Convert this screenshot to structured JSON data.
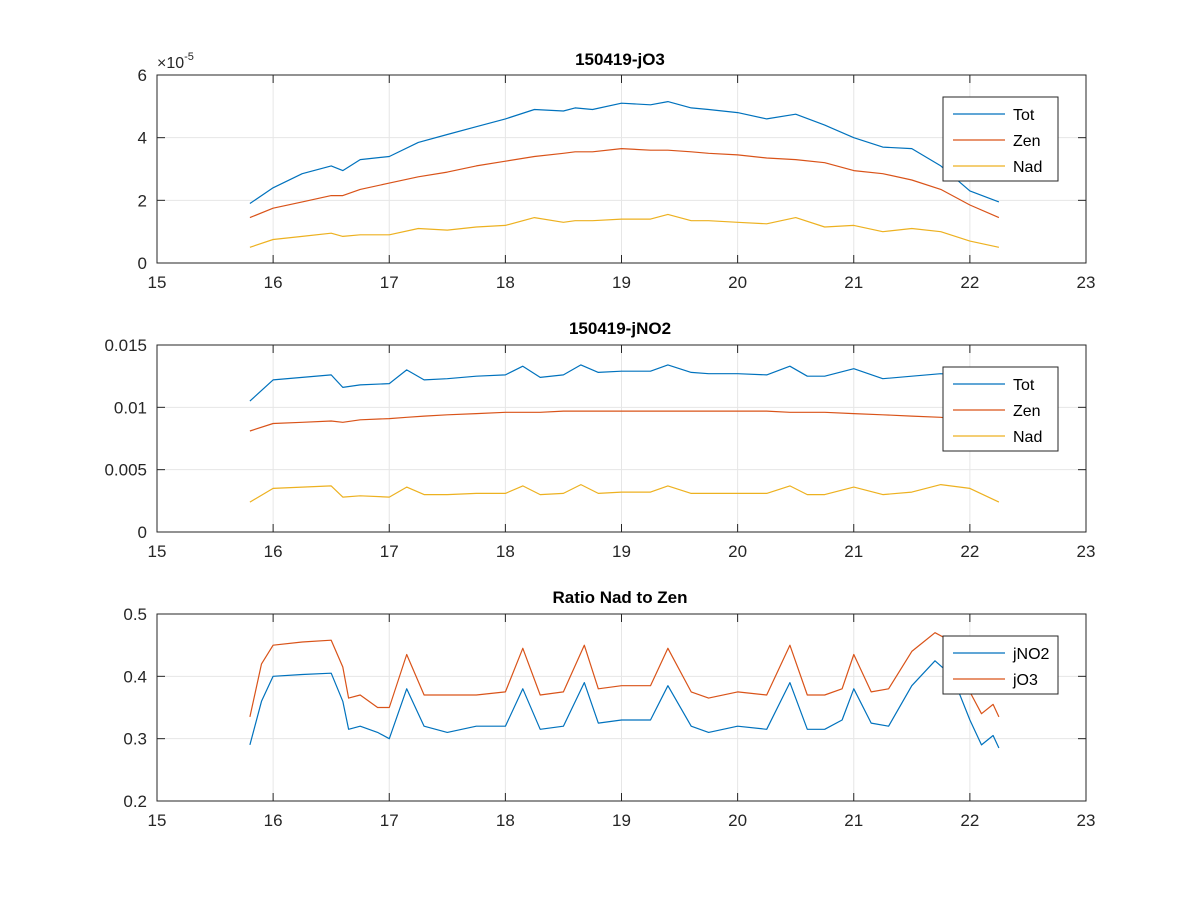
{
  "figure": {
    "background": "#ffffff"
  },
  "chart_data": [
    {
      "type": "line",
      "title": "150419-jO3",
      "xlabel": "",
      "ylabel": "",
      "xlim": [
        15,
        23
      ],
      "ylim": [
        0,
        6
      ],
      "xticks": [
        15,
        16,
        17,
        18,
        19,
        20,
        21,
        22,
        23
      ],
      "yticks": [
        0,
        2,
        4,
        6
      ],
      "ytick_labels": [
        "0",
        "2",
        "4",
        "6"
      ],
      "y_exponent": "-5",
      "y_exponent_prefix": "×10",
      "grid": true,
      "legend_position": "top-right",
      "x": [
        15.8,
        16.0,
        16.25,
        16.5,
        16.6,
        16.75,
        17.0,
        17.25,
        17.5,
        17.75,
        18.0,
        18.25,
        18.5,
        18.6,
        18.75,
        19.0,
        19.25,
        19.4,
        19.6,
        19.75,
        20.0,
        20.25,
        20.5,
        20.75,
        21.0,
        21.25,
        21.5,
        21.75,
        22.0,
        22.25
      ],
      "series": [
        {
          "name": "Tot",
          "color": "#0072BD",
          "values": [
            1.9,
            2.4,
            2.85,
            3.1,
            2.95,
            3.3,
            3.4,
            3.85,
            4.1,
            4.35,
            4.6,
            4.9,
            4.85,
            4.95,
            4.9,
            5.1,
            5.05,
            5.15,
            4.95,
            4.9,
            4.8,
            4.6,
            4.75,
            4.4,
            4.0,
            3.7,
            3.65,
            3.1,
            2.3,
            1.95
          ]
        },
        {
          "name": "Zen",
          "color": "#D95319",
          "values": [
            1.45,
            1.75,
            1.95,
            2.15,
            2.15,
            2.35,
            2.55,
            2.75,
            2.9,
            3.1,
            3.25,
            3.4,
            3.5,
            3.55,
            3.55,
            3.65,
            3.6,
            3.6,
            3.55,
            3.5,
            3.45,
            3.35,
            3.3,
            3.2,
            2.95,
            2.85,
            2.65,
            2.35,
            1.85,
            1.45
          ]
        },
        {
          "name": "Nad",
          "color": "#EDB120",
          "values": [
            0.5,
            0.75,
            0.85,
            0.95,
            0.85,
            0.9,
            0.9,
            1.1,
            1.05,
            1.15,
            1.2,
            1.45,
            1.3,
            1.35,
            1.35,
            1.4,
            1.4,
            1.55,
            1.35,
            1.35,
            1.3,
            1.25,
            1.45,
            1.15,
            1.2,
            1.0,
            1.1,
            1.0,
            0.7,
            0.5
          ]
        }
      ]
    },
    {
      "type": "line",
      "title": "150419-jNO2",
      "xlabel": "",
      "ylabel": "",
      "xlim": [
        15,
        23
      ],
      "ylim": [
        0,
        0.015
      ],
      "xticks": [
        15,
        16,
        17,
        18,
        19,
        20,
        21,
        22,
        23
      ],
      "yticks": [
        0,
        0.005,
        0.01,
        0.015
      ],
      "ytick_labels": [
        "0",
        "0.005",
        "0.01",
        "0.015"
      ],
      "grid": true,
      "legend_position": "top-right",
      "x": [
        15.8,
        16.0,
        16.25,
        16.5,
        16.6,
        16.75,
        17.0,
        17.15,
        17.3,
        17.5,
        17.75,
        18.0,
        18.15,
        18.3,
        18.5,
        18.65,
        18.8,
        19.0,
        19.25,
        19.4,
        19.6,
        19.75,
        20.0,
        20.25,
        20.45,
        20.6,
        20.75,
        21.0,
        21.25,
        21.5,
        21.75,
        22.0,
        22.25
      ],
      "series": [
        {
          "name": "Tot",
          "color": "#0072BD",
          "values": [
            0.0105,
            0.0122,
            0.0124,
            0.0126,
            0.0116,
            0.0118,
            0.0119,
            0.013,
            0.0122,
            0.0123,
            0.0125,
            0.0126,
            0.0133,
            0.0124,
            0.0126,
            0.0134,
            0.0128,
            0.0129,
            0.0129,
            0.0134,
            0.0128,
            0.0127,
            0.0127,
            0.0126,
            0.0133,
            0.0125,
            0.0125,
            0.0131,
            0.0123,
            0.0125,
            0.0127,
            0.0125,
            0.0124
          ]
        },
        {
          "name": "Zen",
          "color": "#D95319",
          "values": [
            0.0081,
            0.0087,
            0.0088,
            0.0089,
            0.0088,
            0.009,
            0.0091,
            0.0092,
            0.0093,
            0.0094,
            0.0095,
            0.0096,
            0.0096,
            0.0096,
            0.0097,
            0.0097,
            0.0097,
            0.0097,
            0.0097,
            0.0097,
            0.0097,
            0.0097,
            0.0097,
            0.0097,
            0.0096,
            0.0096,
            0.0096,
            0.0095,
            0.0094,
            0.0093,
            0.0092,
            0.0089,
            0.0086
          ]
        },
        {
          "name": "Nad",
          "color": "#EDB120",
          "values": [
            0.0024,
            0.0035,
            0.0036,
            0.0037,
            0.0028,
            0.0029,
            0.0028,
            0.0036,
            0.003,
            0.003,
            0.0031,
            0.0031,
            0.0037,
            0.003,
            0.0031,
            0.0038,
            0.0031,
            0.0032,
            0.0032,
            0.0037,
            0.0031,
            0.0031,
            0.0031,
            0.0031,
            0.0037,
            0.003,
            0.003,
            0.0036,
            0.003,
            0.0032,
            0.0038,
            0.0035,
            0.0024
          ]
        }
      ]
    },
    {
      "type": "line",
      "title": "Ratio Nad to Zen",
      "xlabel": "",
      "ylabel": "",
      "xlim": [
        15,
        23
      ],
      "ylim": [
        0.2,
        0.5
      ],
      "xticks": [
        15,
        16,
        17,
        18,
        19,
        20,
        21,
        22,
        23
      ],
      "yticks": [
        0.2,
        0.3,
        0.4,
        0.5
      ],
      "ytick_labels": [
        "0.2",
        "0.3",
        "0.4",
        "0.5"
      ],
      "grid": true,
      "legend_position": "top-right",
      "x": [
        15.8,
        15.9,
        16.0,
        16.25,
        16.5,
        16.6,
        16.65,
        16.75,
        16.9,
        17.0,
        17.15,
        17.3,
        17.5,
        17.75,
        18.0,
        18.15,
        18.3,
        18.5,
        18.68,
        18.8,
        19.0,
        19.25,
        19.4,
        19.6,
        19.75,
        20.0,
        20.25,
        20.45,
        20.6,
        20.75,
        20.9,
        21.0,
        21.15,
        21.3,
        21.5,
        21.7,
        21.85,
        22.0,
        22.1,
        22.2,
        22.25
      ],
      "series": [
        {
          "name": "jNO2",
          "color": "#0072BD",
          "values": [
            0.29,
            0.36,
            0.4,
            0.403,
            0.405,
            0.36,
            0.315,
            0.32,
            0.31,
            0.3,
            0.38,
            0.32,
            0.31,
            0.32,
            0.32,
            0.38,
            0.315,
            0.32,
            0.39,
            0.325,
            0.33,
            0.33,
            0.385,
            0.32,
            0.31,
            0.32,
            0.315,
            0.39,
            0.315,
            0.315,
            0.33,
            0.38,
            0.325,
            0.32,
            0.385,
            0.425,
            0.4,
            0.33,
            0.29,
            0.305,
            0.285
          ]
        },
        {
          "name": "jO3",
          "color": "#D95319",
          "values": [
            0.335,
            0.42,
            0.45,
            0.455,
            0.458,
            0.415,
            0.365,
            0.37,
            0.35,
            0.35,
            0.435,
            0.37,
            0.37,
            0.37,
            0.375,
            0.445,
            0.37,
            0.375,
            0.45,
            0.38,
            0.385,
            0.385,
            0.445,
            0.375,
            0.365,
            0.375,
            0.37,
            0.45,
            0.37,
            0.37,
            0.38,
            0.435,
            0.375,
            0.38,
            0.44,
            0.47,
            0.455,
            0.375,
            0.34,
            0.355,
            0.335
          ]
        }
      ]
    }
  ]
}
